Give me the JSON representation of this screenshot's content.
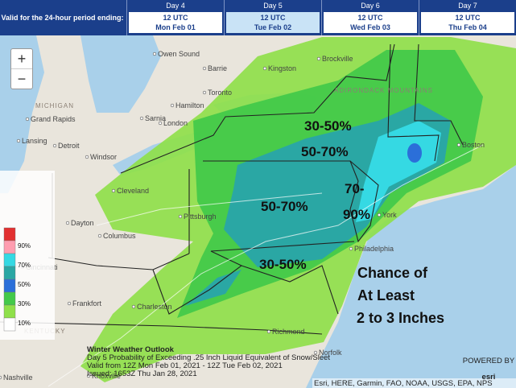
{
  "header": {
    "valid_label": "Valid for the 24-hour period ending:",
    "days": [
      {
        "day": "Day 4",
        "time": "12 UTC",
        "date": "Mon Feb 01"
      },
      {
        "day": "Day 5",
        "time": "12 UTC",
        "date": "Tue Feb 02"
      },
      {
        "day": "Day 6",
        "time": "12 UTC",
        "date": "Wed Feb 03"
      },
      {
        "day": "Day 7",
        "time": "12 UTC",
        "date": "Thu Feb 04"
      }
    ],
    "selected_day": "Day 5"
  },
  "zoom": {
    "in": "+",
    "out": "−"
  },
  "legend": {
    "labels": [
      "90%",
      "70%",
      "50%",
      "30%",
      "10%"
    ]
  },
  "map_labels": {
    "cities": [
      "Owen Sound",
      "Barrie",
      "Kingston",
      "Brockville",
      "Hamilton",
      "Toronto",
      "Sarnia",
      "London",
      "Grand Rapids",
      "Lansing",
      "Detroit",
      "Windsor",
      "Cleveland",
      "Pittsburgh",
      "Columbus",
      "Dayton",
      "Cincinnati",
      "Frankfort",
      "Charleston",
      "Richmond",
      "Norfolk",
      "Knoxville",
      "Nashville",
      "Philadelphia",
      "Boston",
      "York"
    ],
    "states": [
      "MICHIGAN",
      "KENTUCKY",
      "ADIRONDACK MOUNTAINS"
    ]
  },
  "overlay": {
    "zones": [
      "30-50%",
      "50-70%",
      "50-70%",
      "70-",
      "90%",
      "30-50%"
    ],
    "caption": [
      "Chance of",
      "At Least",
      "2 to 3 Inches"
    ]
  },
  "footer": {
    "lines": [
      "Winter Weather Outlook",
      "Day 5 Probability of Exceeding .25 Inch Liquid Equivalent of Snow/Sleet",
      "Valid from 12Z Mon Feb 01, 2021 - 12Z Tue Feb 02, 2021",
      "Issued: 1653Z Thu Jan 28, 2021"
    ],
    "attribution": "Esri, HERE, Garmin, FAO, NOAA, USGS, EPA, NPS",
    "powered": "POWERED BY",
    "logo": "esri"
  }
}
